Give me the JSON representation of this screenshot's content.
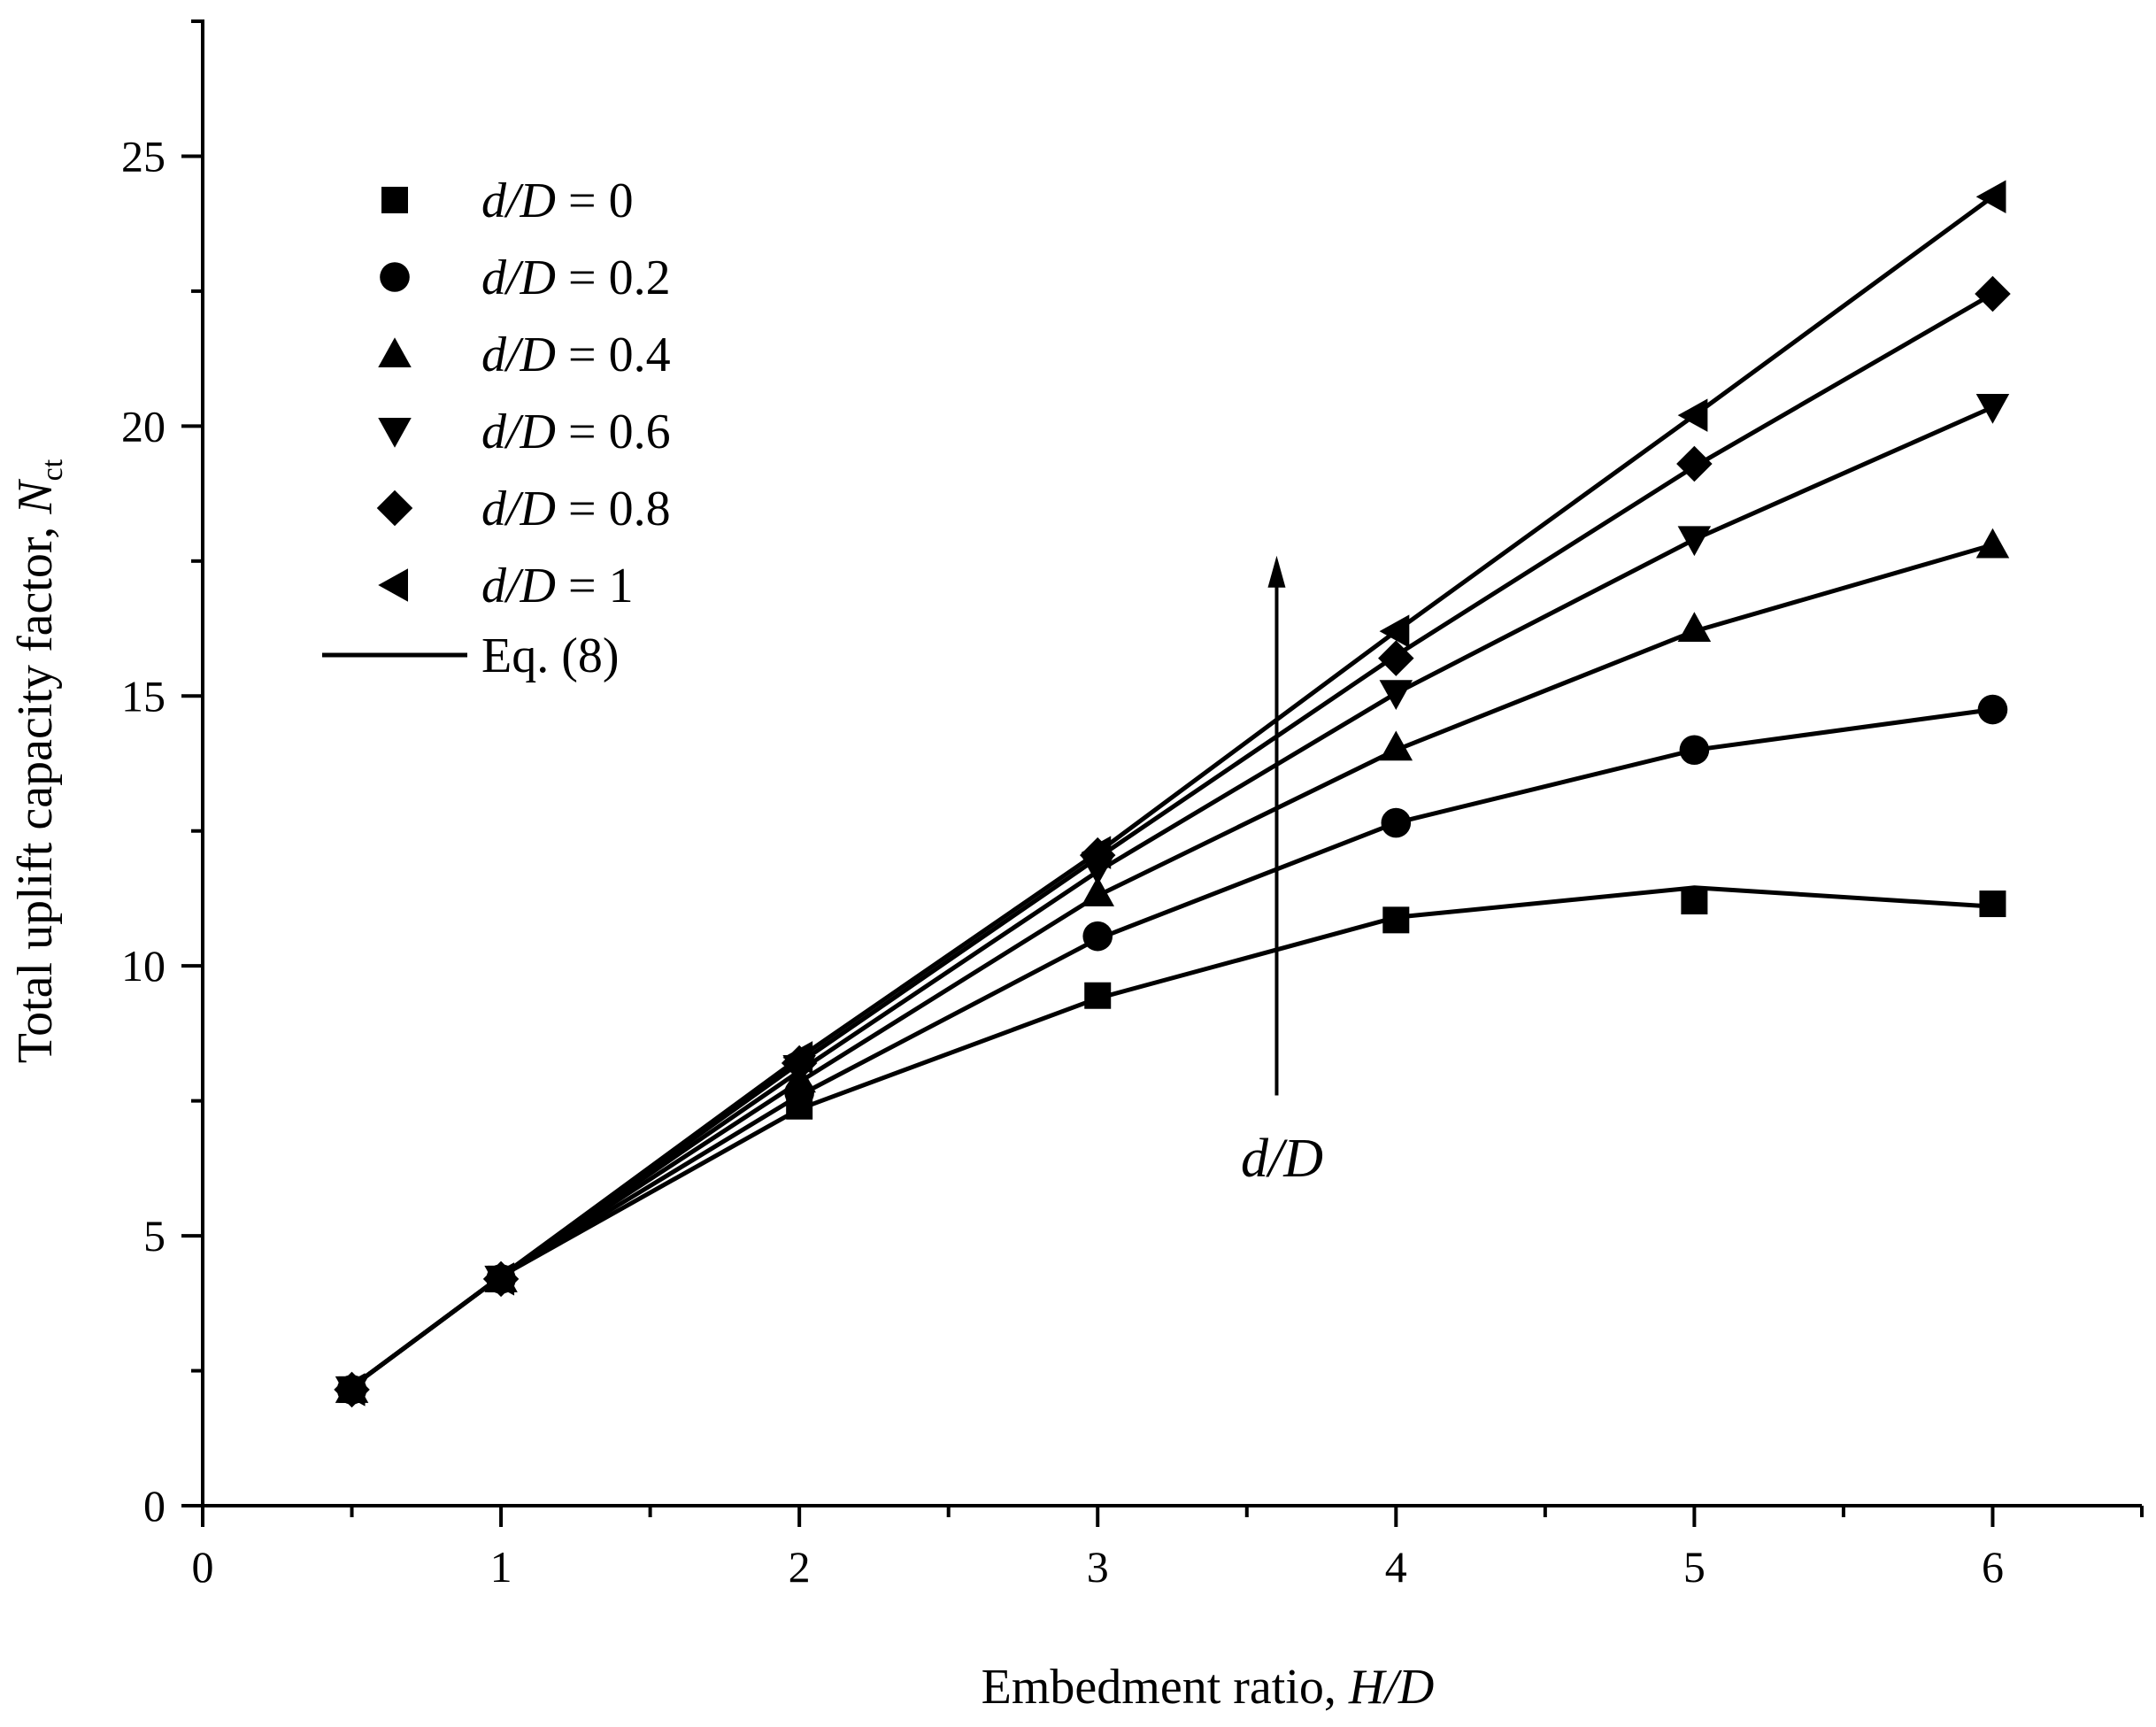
{
  "chart_data": {
    "type": "line",
    "xlabel_prefix": "Embedment ratio, ",
    "xlabel_var": "H/D",
    "ylabel_prefix": "Total uplift capacity factor, ",
    "ylabel_var": "N",
    "ylabel_sub": "ct",
    "xlim": [
      0,
      6.5
    ],
    "ylim": [
      0,
      27.5
    ],
    "xticks": [
      "0",
      "1",
      "2",
      "3",
      "4",
      "5",
      "6"
    ],
    "yticks": [
      "0",
      "5",
      "10",
      "15",
      "20",
      "25"
    ],
    "legend": {
      "position": "top-left",
      "var": "d/D",
      "line_label": "Eq. (8)"
    },
    "annotation": {
      "text": "d/D",
      "arrow_x": 3.6,
      "arrow_y_from": 7.6,
      "arrow_y_to": 17.6,
      "text_x": 3.6,
      "text_y": 6.1
    },
    "series": [
      {
        "name": "d/D = 0",
        "value_label": "= 0",
        "marker": "square",
        "x": [
          0.5,
          1,
          2,
          3,
          4,
          5,
          6
        ],
        "y": [
          2.15,
          4.2,
          7.4,
          9.45,
          10.85,
          11.2,
          11.15
        ],
        "eq_y": [
          2.2,
          4.25,
          7.35,
          9.4,
          10.9,
          11.45,
          11.1
        ]
      },
      {
        "name": "d/D = 0.2",
        "value_label": "= 0.2",
        "marker": "circle",
        "x": [
          0.5,
          1,
          2,
          3,
          4,
          5,
          6
        ],
        "y": [
          2.15,
          4.2,
          7.65,
          10.55,
          12.65,
          14.0,
          14.75
        ],
        "eq_y": [
          2.2,
          4.25,
          7.6,
          10.5,
          12.65,
          14.0,
          14.75
        ]
      },
      {
        "name": "d/D = 0.4",
        "value_label": "= 0.4",
        "marker": "triangle-up",
        "x": [
          0.5,
          1,
          2,
          3,
          4,
          5,
          6
        ],
        "y": [
          2.15,
          4.2,
          7.9,
          11.35,
          14.05,
          16.25,
          17.8
        ],
        "eq_y": [
          2.2,
          4.25,
          7.85,
          11.3,
          14.0,
          16.2,
          17.8
        ]
      },
      {
        "name": "d/D = 0.6",
        "value_label": "= 0.6",
        "marker": "triangle-down",
        "x": [
          0.5,
          1,
          2,
          3,
          4,
          5,
          6
        ],
        "y": [
          2.15,
          4.2,
          8.1,
          11.8,
          15.05,
          17.9,
          20.35
        ],
        "eq_y": [
          2.2,
          4.25,
          8.05,
          11.75,
          15.05,
          17.9,
          20.35
        ]
      },
      {
        "name": "d/D = 0.8",
        "value_label": "= 0.8",
        "marker": "diamond",
        "x": [
          0.5,
          1,
          2,
          3,
          4,
          5,
          6
        ],
        "y": [
          2.15,
          4.2,
          8.2,
          12.05,
          15.7,
          19.3,
          22.45
        ],
        "eq_y": [
          2.2,
          4.25,
          8.2,
          12.0,
          15.75,
          19.25,
          22.45
        ]
      },
      {
        "name": "d/D = 1",
        "value_label": "= 1",
        "marker": "triangle-left",
        "x": [
          0.5,
          1,
          2,
          3,
          4,
          5,
          6
        ],
        "y": [
          2.15,
          4.2,
          8.3,
          12.1,
          16.2,
          20.2,
          24.25
        ],
        "eq_y": [
          2.2,
          4.25,
          8.3,
          12.1,
          16.2,
          20.2,
          24.25
        ]
      }
    ]
  }
}
